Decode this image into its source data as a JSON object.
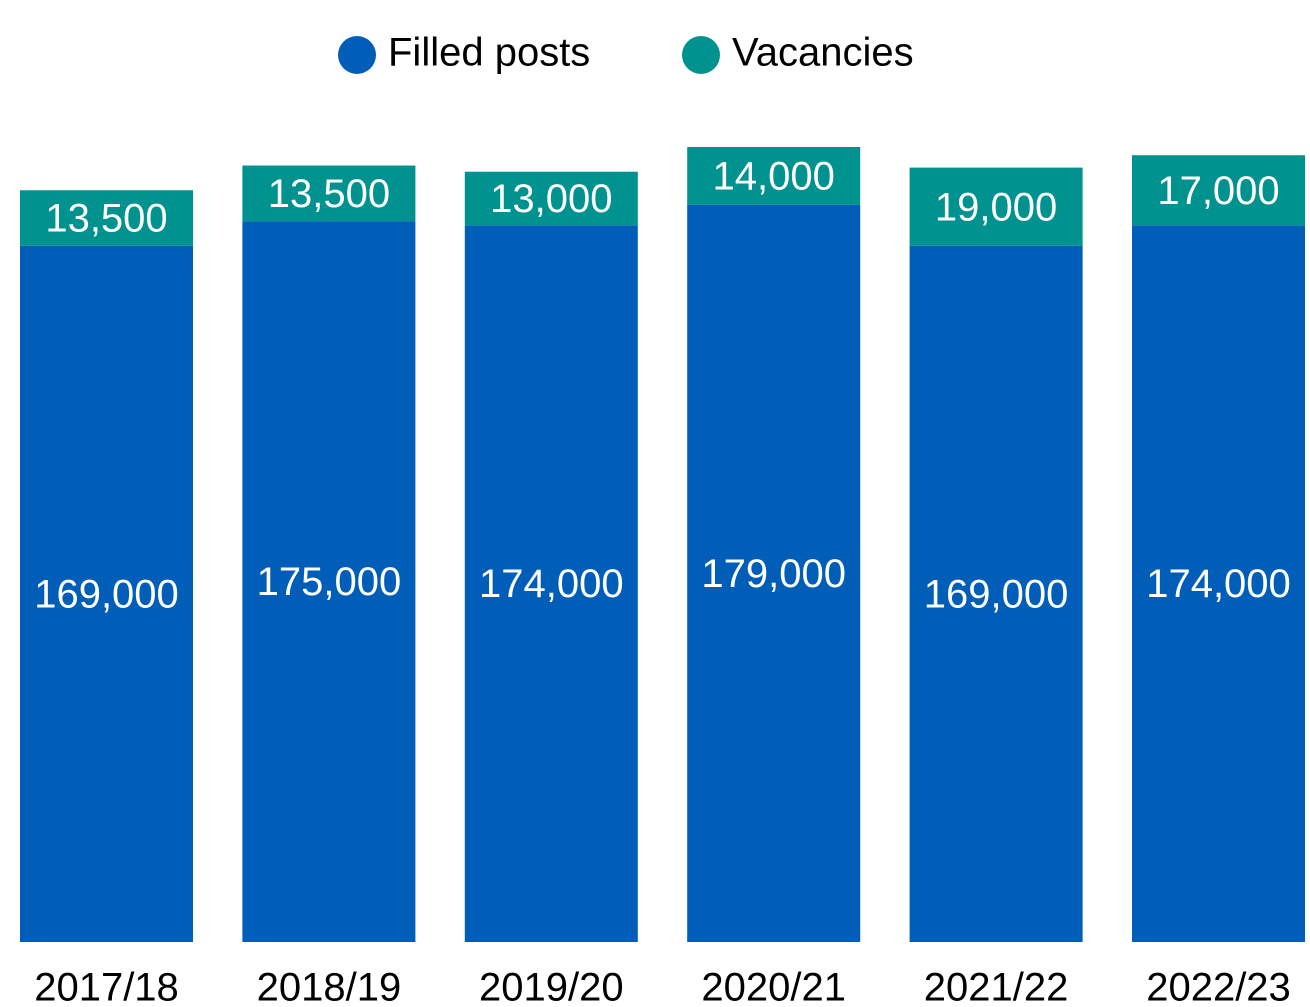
{
  "chart_data": {
    "type": "stacked_bar",
    "categories": [
      "2017/18",
      "2018/19",
      "2019/20",
      "2020/21",
      "2021/22",
      "2022/23"
    ],
    "series": [
      {
        "name": "Filled posts",
        "color": "#005eb8",
        "values": [
          169000,
          175000,
          174000,
          179000,
          169000,
          174000
        ],
        "value_labels": [
          "169,000",
          "175,000",
          "174,000",
          "179,000",
          "169,000",
          "174,000"
        ]
      },
      {
        "name": "Vacancies",
        "color": "#00928f",
        "values": [
          13500,
          13500,
          13000,
          14000,
          19000,
          17000
        ],
        "value_labels": [
          "13,500",
          "13,500",
          "13,000",
          "14,000",
          "19,000",
          "17,000"
        ]
      }
    ],
    "legend": "top"
  }
}
